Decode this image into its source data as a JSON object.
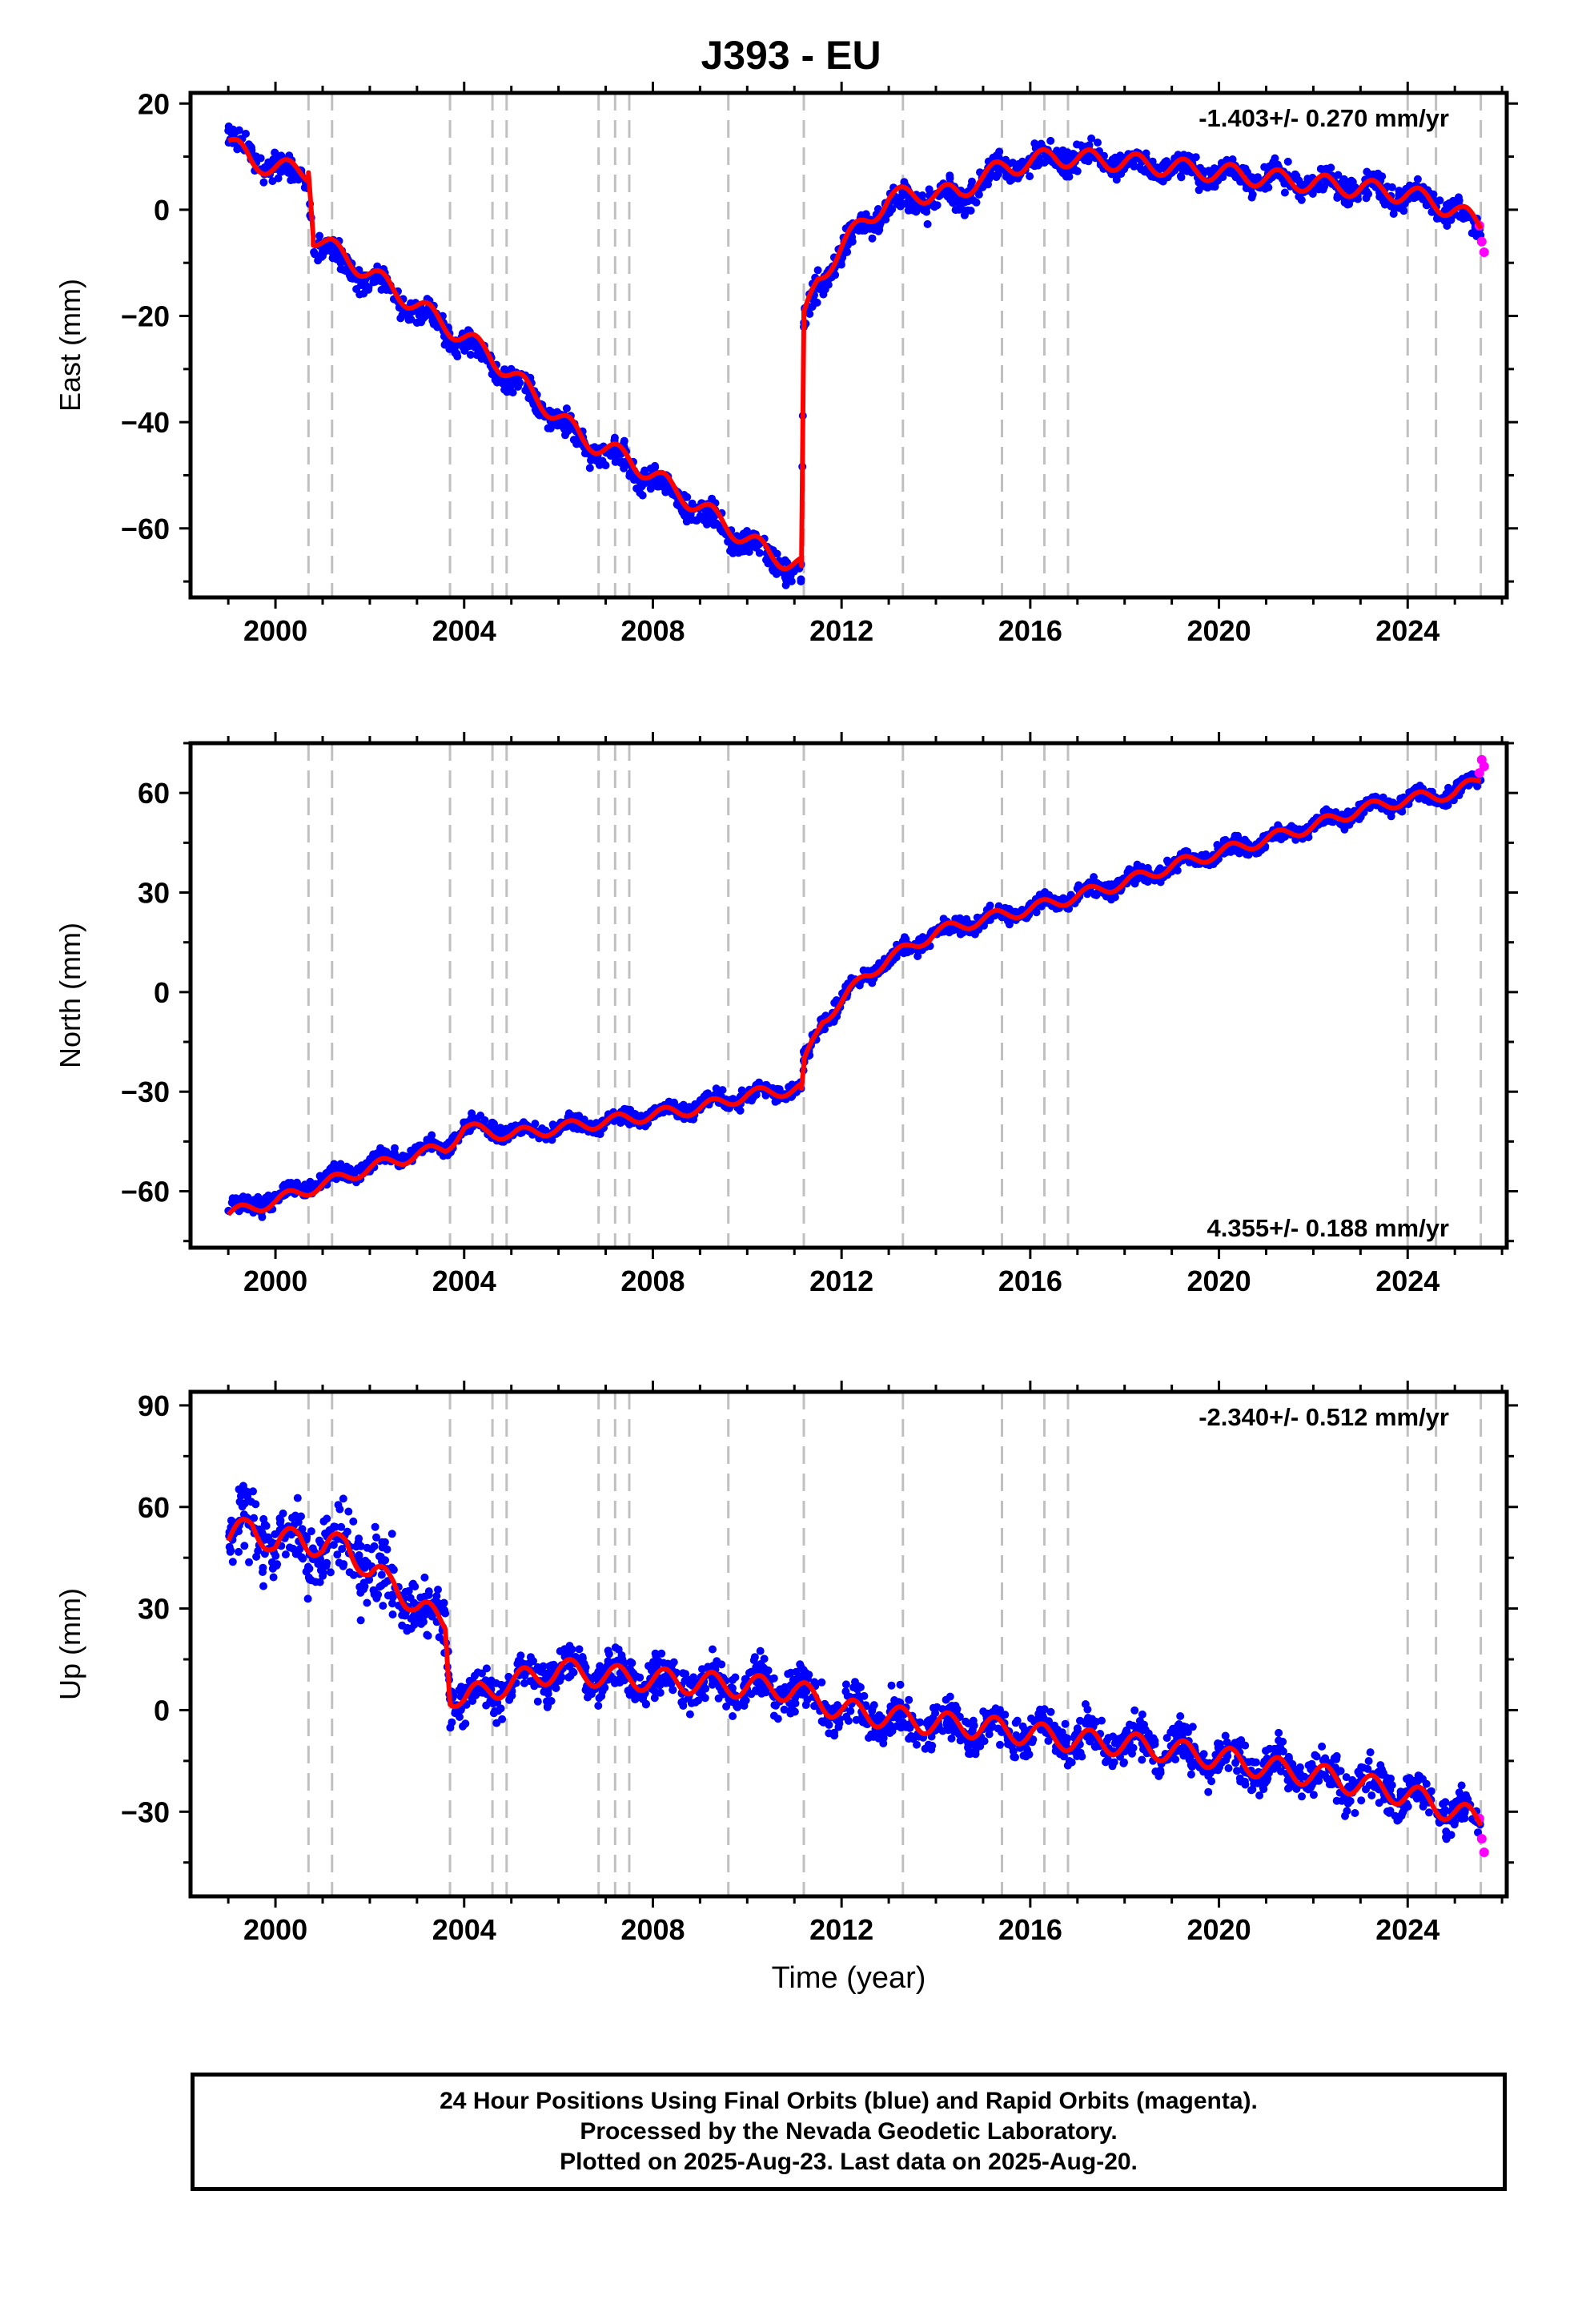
{
  "title": "J393 - EU",
  "colors": {
    "final_orbits": "#0000ff",
    "rapid_orbits": "#ff00ff",
    "model_fit": "#ff0000",
    "event_lines": "#c0c0c0"
  },
  "chart_data": [
    {
      "type": "scatter",
      "component": "East",
      "ylabel": "East (mm)",
      "xlabel": "",
      "xlim": [
        1998.2,
        2026.1
      ],
      "ylim": [
        -73,
        22
      ],
      "x_ticks": [
        2000,
        2004,
        2008,
        2012,
        2016,
        2020,
        2024
      ],
      "y_ticks": [
        20,
        0,
        -20,
        -40,
        -60
      ],
      "rate_label": "-1.403+/- 0.270 mm/yr",
      "rate_position": "top-right",
      "series": [
        {
          "name": "",
          "role": "final_orbits_blue",
          "x": [
            1999.0,
            1999.5,
            2000.0,
            2000.7,
            2000.8,
            2001.5,
            2002.5,
            2003.5,
            2004.5,
            2005.5,
            2006.5,
            2007.5,
            2008.5,
            2009.5,
            2010.5,
            2011.15,
            2011.2,
            2011.5,
            2012.0,
            2012.5,
            2013.0,
            2013.5,
            2014.5,
            2014.9,
            2015.5,
            2016.5,
            2018.0,
            2020.0,
            2022.0,
            2024.0,
            2025.0,
            2025.55
          ],
          "y": [
            14,
            10,
            8,
            6,
            -6,
            -10,
            -16,
            -22,
            -28,
            -36,
            -44,
            -48,
            -54,
            -60,
            -66,
            -68,
            -22,
            -14,
            -8,
            -3,
            1,
            2,
            2,
            5,
            8,
            10,
            9,
            7,
            5,
            3,
            0,
            -4
          ]
        },
        {
          "name": "",
          "role": "rapid_orbits_magenta",
          "x": [
            2025.52,
            2025.57,
            2025.62
          ],
          "y": [
            -3,
            -6,
            -8
          ]
        },
        {
          "name": "",
          "role": "model_fit_red",
          "x": [
            1999.0,
            1999.5,
            2000.0,
            2000.7,
            2000.8,
            2001.5,
            2002.5,
            2003.5,
            2004.5,
            2005.5,
            2006.5,
            2007.5,
            2008.5,
            2009.5,
            2010.5,
            2011.15,
            2011.2,
            2011.5,
            2012.0,
            2012.5,
            2013.0,
            2013.5,
            2014.5,
            2014.9,
            2015.5,
            2016.5,
            2018.0,
            2020.0,
            2022.0,
            2024.0,
            2025.0,
            2025.55
          ],
          "y": [
            13,
            9,
            8,
            7,
            -5,
            -9,
            -15,
            -21,
            -27,
            -35,
            -43,
            -47,
            -53,
            -59,
            -65,
            -67,
            -21,
            -13,
            -7,
            -2,
            2,
            3,
            3,
            6,
            8,
            10,
            9,
            7,
            5,
            3,
            0,
            -3
          ]
        }
      ]
    },
    {
      "type": "scatter",
      "component": "North",
      "ylabel": "North (mm)",
      "xlabel": "",
      "xlim": [
        1998.2,
        2026.1
      ],
      "ylim": [
        -77,
        75
      ],
      "x_ticks": [
        2000,
        2004,
        2008,
        2012,
        2016,
        2020,
        2024
      ],
      "y_ticks": [
        60,
        30,
        0,
        -30,
        -60
      ],
      "rate_label": "4.355+/- 0.188 mm/yr",
      "rate_position": "bottom-right",
      "series": [
        {
          "name": "",
          "role": "final_orbits_blue",
          "x": [
            1999.0,
            2000.0,
            2001.0,
            2002.0,
            2003.0,
            2003.6,
            2004.0,
            2005.0,
            2006.0,
            2007.0,
            2008.0,
            2009.0,
            2010.0,
            2011.15,
            2011.2,
            2011.6,
            2012.0,
            2012.5,
            2013.0,
            2014.0,
            2015.0,
            2016.0,
            2017.0,
            2018.0,
            2019.0,
            2020.0,
            2021.0,
            2022.0,
            2023.0,
            2024.0,
            2025.0,
            2025.55
          ],
          "y": [
            -66,
            -62,
            -57,
            -52,
            -48,
            -47,
            -40,
            -42,
            -41,
            -39,
            -37,
            -34,
            -31,
            -29,
            -22,
            -8,
            -3,
            5,
            10,
            18,
            22,
            25,
            29,
            33,
            38,
            42,
            46,
            50,
            55,
            58,
            60,
            64
          ]
        },
        {
          "name": "",
          "role": "rapid_orbits_magenta",
          "x": [
            2025.52,
            2025.57,
            2025.62
          ],
          "y": [
            66,
            70,
            68
          ]
        },
        {
          "name": "",
          "role": "model_fit_red",
          "x": [
            1999.0,
            2000.0,
            2001.0,
            2002.0,
            2003.0,
            2003.6,
            2004.0,
            2005.0,
            2006.0,
            2007.0,
            2008.0,
            2009.0,
            2010.0,
            2011.15,
            2011.2,
            2011.6,
            2012.0,
            2012.5,
            2013.0,
            2014.0,
            2015.0,
            2016.0,
            2017.0,
            2018.0,
            2019.0,
            2020.0,
            2021.0,
            2022.0,
            2023.0,
            2024.0,
            2025.0,
            2025.55
          ],
          "y": [
            -67,
            -63,
            -58,
            -53,
            -49,
            -47,
            -41,
            -43,
            -41,
            -39,
            -37,
            -35,
            -31,
            -29,
            -22,
            -8,
            -3,
            5,
            10,
            18,
            22,
            25,
            29,
            33,
            38,
            42,
            46,
            50,
            55,
            58,
            60,
            64
          ]
        }
      ]
    },
    {
      "type": "scatter",
      "component": "Up",
      "ylabel": "Up (mm)",
      "xlabel": "Time (year)",
      "xlim": [
        1998.2,
        2026.1
      ],
      "ylim": [
        -55,
        94
      ],
      "x_ticks": [
        2000,
        2004,
        2008,
        2012,
        2016,
        2020,
        2024
      ],
      "y_ticks": [
        90,
        60,
        30,
        0,
        -30
      ],
      "rate_label": "-2.340+/- 0.512 mm/yr",
      "rate_position": "top-right",
      "series": [
        {
          "name": "",
          "role": "final_orbits_blue",
          "x": [
            1999.0,
            1999.5,
            2000.0,
            2000.5,
            2001.0,
            2001.5,
            2002.0,
            2002.5,
            2003.0,
            2003.6,
            2003.7,
            2004.0,
            2004.5,
            2005.0,
            2006.0,
            2007.0,
            2008.0,
            2009.0,
            2010.0,
            2011.0,
            2012.0,
            2013.0,
            2014.0,
            2015.0,
            2016.0,
            2017.0,
            2018.0,
            2019.0,
            2020.0,
            2021.0,
            2022.0,
            2023.0,
            2024.0,
            2025.0,
            2025.55
          ],
          "y": [
            50,
            55,
            48,
            52,
            47,
            50,
            40,
            38,
            30,
            26,
            5,
            3,
            6,
            8,
            12,
            10,
            9,
            8,
            7,
            6,
            0,
            -2,
            -4,
            -5,
            -7,
            -9,
            -10,
            -12,
            -14,
            -17,
            -19,
            -22,
            -25,
            -30,
            -34
          ]
        },
        {
          "name": "",
          "role": "rapid_orbits_magenta",
          "x": [
            2025.52,
            2025.57,
            2025.62
          ],
          "y": [
            -32,
            -38,
            -42
          ]
        },
        {
          "name": "",
          "role": "model_fit_red",
          "x": [
            1999.0,
            1999.5,
            2000.0,
            2000.5,
            2001.0,
            2001.5,
            2002.0,
            2002.5,
            2003.0,
            2003.6,
            2003.7,
            2004.0,
            2004.5,
            2005.0,
            2006.0,
            2007.0,
            2008.0,
            2009.0,
            2010.0,
            2011.0,
            2012.0,
            2013.0,
            2014.0,
            2015.0,
            2016.0,
            2017.0,
            2018.0,
            2019.0,
            2020.0,
            2021.0,
            2022.0,
            2023.0,
            2024.0,
            2025.0,
            2025.55
          ],
          "y": [
            50,
            55,
            48,
            52,
            47,
            50,
            40,
            38,
            30,
            26,
            5,
            3,
            6,
            8,
            12,
            10,
            9,
            8,
            7,
            6,
            0,
            -2,
            -4,
            -5,
            -7,
            -9,
            -10,
            -12,
            -14,
            -17,
            -19,
            -22,
            -25,
            -30,
            -33
          ]
        }
      ]
    }
  ],
  "event_lines": [
    2000.7,
    2001.2,
    2003.7,
    2004.6,
    2004.9,
    2006.85,
    2007.2,
    2007.5,
    2009.6,
    2011.2,
    2013.3,
    2015.4,
    2016.3,
    2016.8,
    2024.0,
    2024.6,
    2025.55
  ],
  "footer": {
    "line1": "24 Hour Positions Using Final Orbits (blue) and Rapid Orbits (magenta).",
    "line2": "Processed by the Nevada Geodetic Laboratory.",
    "line3": "Plotted on 2025-Aug-23. Last data on 2025-Aug-20."
  }
}
